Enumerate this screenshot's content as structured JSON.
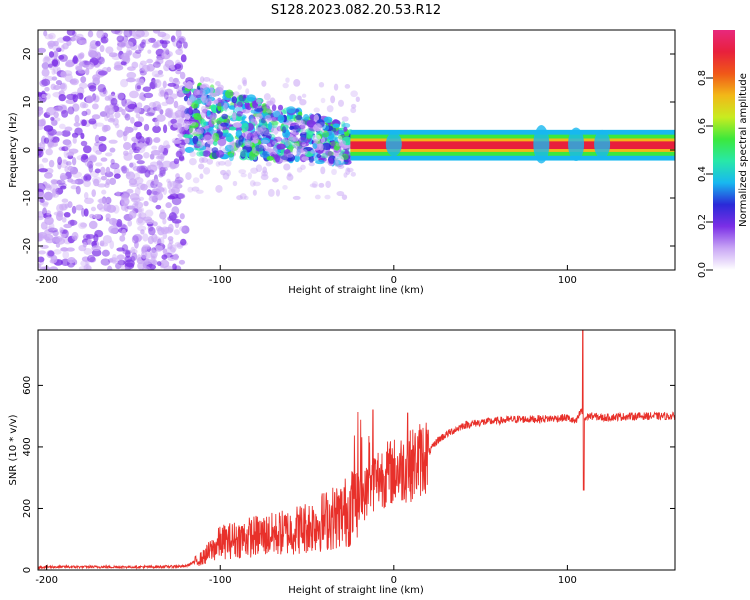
{
  "title": "S128.2023.082.20.53.R12",
  "chart_data": [
    {
      "type": "heatmap",
      "title": "S128.2023.082.20.53.R12",
      "xlabel": "Height of straight line (km)",
      "ylabel": "Frequency (Hz)",
      "xlim": [
        -205,
        162
      ],
      "ylim": [
        -25,
        25
      ],
      "xticks": [
        -200,
        -100,
        0,
        100
      ],
      "yticks": [
        -20,
        -10,
        0,
        10,
        20
      ],
      "colorbar": {
        "label": "Normalized spectral amplitude",
        "range": [
          0,
          1
        ],
        "ticks": [
          "0.0",
          "0.2",
          "0.4",
          "0.6",
          "0.8"
        ],
        "colors": [
          "#ffffff",
          "#c9a6f5",
          "#7b2fe6",
          "#2a2ad8",
          "#18b8f0",
          "#28e8a8",
          "#3ce83c",
          "#c8ec20",
          "#f2b818",
          "#f05818",
          "#e8203c",
          "#e8287c"
        ]
      },
      "regions": [
        {
          "x_range": [
            -205,
            -120
          ],
          "freq_range": [
            -25,
            25
          ],
          "description_level": "noise",
          "amplitude": 0.2
        },
        {
          "x_range": [
            -120,
            -25
          ],
          "freq_center_start": 7,
          "freq_center_end": 1,
          "amplitude": 0.4
        },
        {
          "x_range": [
            -25,
            162
          ],
          "freq_center": 1,
          "amplitude": 0.9
        }
      ]
    },
    {
      "type": "line",
      "xlabel": "Height of straight line (km)",
      "ylabel": "SNR (10 * v/v)",
      "xlim": [
        -205,
        162
      ],
      "ylim": [
        0,
        780
      ],
      "xticks": [
        -200,
        -100,
        0,
        100
      ],
      "yticks": [
        0,
        200,
        400,
        600
      ],
      "color": "#e8302a",
      "series": [
        {
          "x": [
            -205,
            -180,
            -160,
            -140,
            -120,
            -110,
            -100,
            -90,
            -80,
            -70,
            -60,
            -50,
            -40,
            -30,
            -20,
            -15,
            -10,
            -5,
            0,
            10,
            20,
            25,
            30,
            40,
            50,
            60,
            70,
            80,
            90,
            100,
            105,
            108,
            110,
            112,
            115,
            120,
            130,
            140,
            150,
            162
          ],
          "y": [
            10,
            10,
            10,
            10,
            12,
            40,
            90,
            100,
            110,
            115,
            125,
            140,
            160,
            180,
            220,
            260,
            300,
            310,
            320,
            340,
            380,
            420,
            440,
            470,
            480,
            485,
            490,
            490,
            492,
            495,
            480,
            520,
            490,
            500,
            500,
            495,
            498,
            500,
            500,
            500
          ]
        }
      ],
      "annotations": [
        {
          "x": -12,
          "y": 520
        },
        {
          "x": 8,
          "y": 510
        },
        {
          "x": 109,
          "y": 780
        },
        {
          "x": 109,
          "y": 260
        }
      ]
    }
  ]
}
